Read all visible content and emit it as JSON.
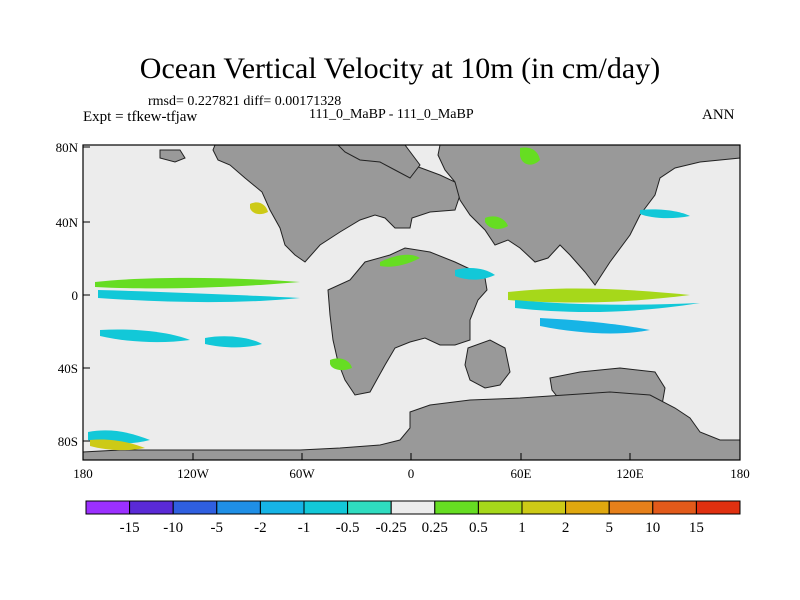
{
  "title": "Ocean Vertical Velocity at 10m (in cm/day)",
  "subtitle_rmsd": "rmsd= 0.227821 diff= 0.00171328",
  "experiment": "Expt = tfkew-tfjaw",
  "cases": "111_0_MaBP - 111_0_MaBP",
  "season": "ANN",
  "axes": {
    "lat_labels": [
      "80N",
      "40N",
      "0",
      "40S",
      "80S"
    ],
    "lon_labels": [
      "180",
      "120W",
      "60W",
      "0",
      "60E",
      "120E",
      "180"
    ]
  },
  "colorbar": {
    "labels": [
      "-15",
      "-10",
      "-5",
      "-2",
      "-1",
      "-0.5",
      "-0.25",
      "0.25",
      "0.5",
      "1",
      "2",
      "5",
      "10",
      "15"
    ],
    "colors": [
      "#9b30ff",
      "#5a2ad6",
      "#2f5fe0",
      "#1f8fe6",
      "#16b4e6",
      "#12c8d8",
      "#2fdcc0",
      "#ececec",
      "#66dd22",
      "#a6d81a",
      "#cdca16",
      "#e0a80f",
      "#e6801a",
      "#e25a1a",
      "#e03010"
    ]
  },
  "colors": {
    "land": "#999999",
    "ocean": "#ececec"
  }
}
